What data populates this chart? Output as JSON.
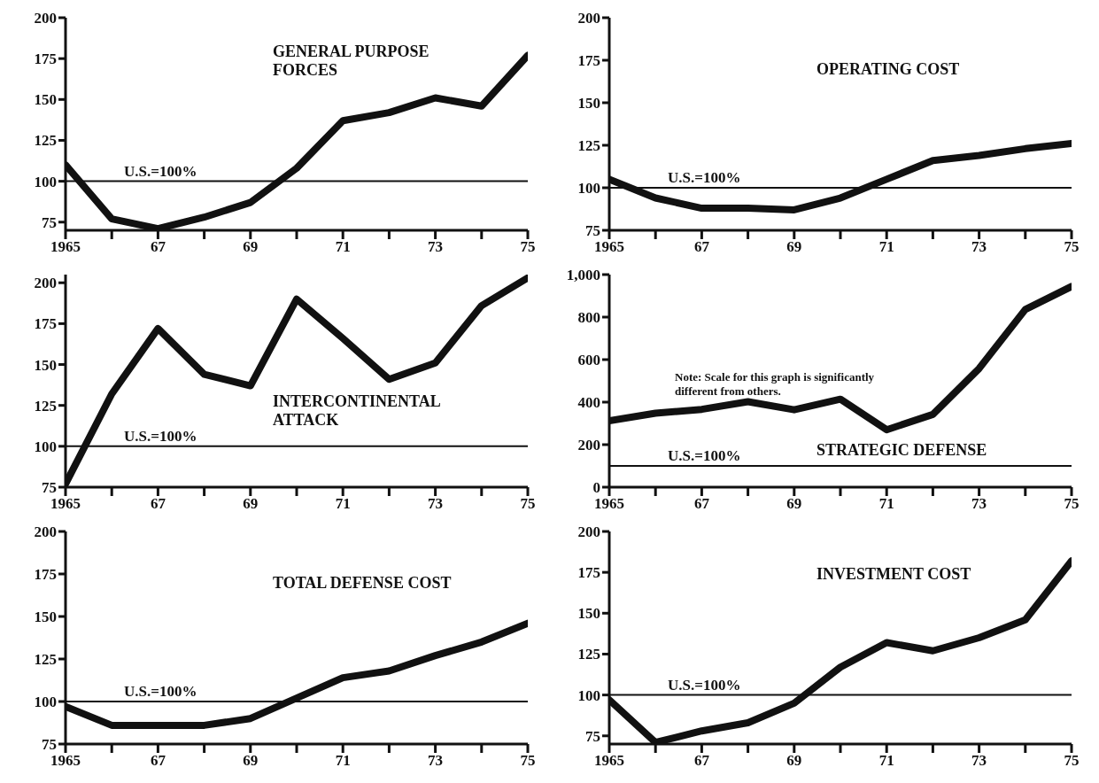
{
  "chart_data": [
    {
      "type": "line",
      "title": "GENERAL PURPOSE FORCES",
      "x": [
        1965,
        1966,
        1967,
        1968,
        1969,
        1970,
        1971,
        1972,
        1973,
        1974,
        1975
      ],
      "series": [
        {
          "color": "#111111",
          "values": [
            110,
            77,
            71,
            78,
            87,
            108,
            137,
            142,
            151,
            146,
            177
          ]
        }
      ],
      "xlim": [
        1965,
        1975
      ],
      "xticks": [
        {
          "value": 1965,
          "label": "1965"
        },
        {
          "value": 1966,
          "label": null
        },
        {
          "value": 1967,
          "label": "67"
        },
        {
          "value": 1968,
          "label": null
        },
        {
          "value": 1969,
          "label": "69"
        },
        {
          "value": 1970,
          "label": null
        },
        {
          "value": 1971,
          "label": "71"
        },
        {
          "value": 1972,
          "label": null
        },
        {
          "value": 1973,
          "label": "73"
        },
        {
          "value": 1974,
          "label": null
        },
        {
          "value": 1975,
          "label": "75"
        }
      ],
      "ylim": [
        70,
        200
      ],
      "yticks": [
        75,
        100,
        125,
        150,
        175,
        200
      ],
      "ref_lines": [
        {
          "axis": "y",
          "value": 100,
          "label": "U.S.=100%"
        }
      ],
      "grid": false,
      "legend": false,
      "marker": "none",
      "line_style": "solid"
    },
    {
      "type": "line",
      "title": "OPERATING COST",
      "x": [
        1965,
        1966,
        1967,
        1968,
        1969,
        1970,
        1971,
        1972,
        1973,
        1974,
        1975
      ],
      "series": [
        {
          "color": "#111111",
          "values": [
            105,
            94,
            88,
            88,
            87,
            94,
            105,
            116,
            119,
            123,
            126
          ]
        }
      ],
      "xlim": [
        1965,
        1975
      ],
      "xticks": [
        {
          "value": 1965,
          "label": "1965"
        },
        {
          "value": 1966,
          "label": null
        },
        {
          "value": 1967,
          "label": "67"
        },
        {
          "value": 1968,
          "label": null
        },
        {
          "value": 1969,
          "label": "69"
        },
        {
          "value": 1970,
          "label": null
        },
        {
          "value": 1971,
          "label": "71"
        },
        {
          "value": 1972,
          "label": null
        },
        {
          "value": 1973,
          "label": "73"
        },
        {
          "value": 1974,
          "label": null
        },
        {
          "value": 1975,
          "label": "75"
        }
      ],
      "ylim": [
        75,
        200
      ],
      "yticks": [
        75,
        100,
        125,
        150,
        175,
        200
      ],
      "ref_lines": [
        {
          "axis": "y",
          "value": 100,
          "label": "U.S.=100%"
        }
      ],
      "grid": false,
      "legend": false,
      "marker": "none",
      "line_style": "solid"
    },
    {
      "type": "line",
      "title": "INTERCONTINENTAL ATTACK",
      "x": [
        1965,
        1966,
        1967,
        1968,
        1969,
        1970,
        1971,
        1972,
        1973,
        1974,
        1975
      ],
      "series": [
        {
          "color": "#111111",
          "values": [
            77,
            132,
            172,
            144,
            137,
            190,
            166,
            141,
            151,
            186,
            203
          ]
        }
      ],
      "xlim": [
        1965,
        1975
      ],
      "xticks": [
        {
          "value": 1965,
          "label": "1965"
        },
        {
          "value": 1966,
          "label": null
        },
        {
          "value": 1967,
          "label": "67"
        },
        {
          "value": 1968,
          "label": null
        },
        {
          "value": 1969,
          "label": "69"
        },
        {
          "value": 1970,
          "label": null
        },
        {
          "value": 1971,
          "label": "71"
        },
        {
          "value": 1972,
          "label": null
        },
        {
          "value": 1973,
          "label": "73"
        },
        {
          "value": 1974,
          "label": null
        },
        {
          "value": 1975,
          "label": "75"
        }
      ],
      "ylim": [
        75,
        205
      ],
      "yticks": [
        75,
        100,
        125,
        150,
        175,
        200
      ],
      "ref_lines": [
        {
          "axis": "y",
          "value": 100,
          "label": "U.S.=100%"
        }
      ],
      "grid": false,
      "legend": false,
      "marker": "none",
      "line_style": "solid"
    },
    {
      "type": "line",
      "title": "STRATEGIC DEFENSE",
      "annotations": [
        "Note:  Scale for this graph is significantly different from others."
      ],
      "x": [
        1965,
        1966,
        1967,
        1968,
        1969,
        1970,
        1971,
        1972,
        1973,
        1974,
        1975
      ],
      "series": [
        {
          "color": "#111111",
          "values": [
            312,
            348,
            366,
            402,
            364,
            414,
            270,
            342,
            558,
            836,
            944
          ]
        }
      ],
      "xlim": [
        1965,
        1975
      ],
      "xticks": [
        {
          "value": 1965,
          "label": "1965"
        },
        {
          "value": 1966,
          "label": null
        },
        {
          "value": 1967,
          "label": "67"
        },
        {
          "value": 1968,
          "label": null
        },
        {
          "value": 1969,
          "label": "69"
        },
        {
          "value": 1970,
          "label": null
        },
        {
          "value": 1971,
          "label": "71"
        },
        {
          "value": 1972,
          "label": null
        },
        {
          "value": 1973,
          "label": "73"
        },
        {
          "value": 1974,
          "label": null
        },
        {
          "value": 1975,
          "label": "75"
        }
      ],
      "ylim": [
        0,
        1000
      ],
      "yticks": [
        0,
        200,
        400,
        600,
        800,
        {
          "value": 1000,
          "label": "1,000"
        }
      ],
      "ref_lines": [
        {
          "axis": "y",
          "value": 100,
          "label": "U.S.=100%"
        }
      ],
      "grid": false,
      "legend": false,
      "marker": "none",
      "line_style": "solid"
    },
    {
      "type": "line",
      "title": "TOTAL DEFENSE COST",
      "x": [
        1965,
        1966,
        1967,
        1968,
        1969,
        1970,
        1971,
        1972,
        1973,
        1974,
        1975
      ],
      "series": [
        {
          "color": "#111111",
          "values": [
            97,
            86,
            86,
            86,
            90,
            102,
            114,
            118,
            127,
            135,
            146
          ]
        }
      ],
      "xlim": [
        1965,
        1975
      ],
      "xticks": [
        {
          "value": 1965,
          "label": "1965"
        },
        {
          "value": 1966,
          "label": null
        },
        {
          "value": 1967,
          "label": "67"
        },
        {
          "value": 1968,
          "label": null
        },
        {
          "value": 1969,
          "label": "69"
        },
        {
          "value": 1970,
          "label": null
        },
        {
          "value": 1971,
          "label": "71"
        },
        {
          "value": 1972,
          "label": null
        },
        {
          "value": 1973,
          "label": "73"
        },
        {
          "value": 1974,
          "label": null
        },
        {
          "value": 1975,
          "label": "75"
        }
      ],
      "ylim": [
        75,
        200
      ],
      "yticks": [
        75,
        100,
        125,
        150,
        175,
        200
      ],
      "ref_lines": [
        {
          "axis": "y",
          "value": 100,
          "label": "U.S.=100%"
        }
      ],
      "grid": false,
      "legend": false,
      "marker": "none",
      "line_style": "solid"
    },
    {
      "type": "line",
      "title": "INVESTMENT COST",
      "x": [
        1965,
        1966,
        1967,
        1968,
        1969,
        1970,
        1971,
        1972,
        1973,
        1974,
        1975
      ],
      "series": [
        {
          "color": "#111111",
          "values": [
            97,
            71,
            78,
            83,
            95,
            117,
            132,
            127,
            135,
            146,
            182
          ]
        }
      ],
      "xlim": [
        1965,
        1975
      ],
      "xticks": [
        {
          "value": 1965,
          "label": "1965"
        },
        {
          "value": 1966,
          "label": null
        },
        {
          "value": 1967,
          "label": "67"
        },
        {
          "value": 1968,
          "label": null
        },
        {
          "value": 1969,
          "label": "69"
        },
        {
          "value": 1970,
          "label": null
        },
        {
          "value": 1971,
          "label": "71"
        },
        {
          "value": 1972,
          "label": null
        },
        {
          "value": 1973,
          "label": "73"
        },
        {
          "value": 1974,
          "label": null
        },
        {
          "value": 1975,
          "label": "75"
        }
      ],
      "ylim": [
        70,
        200
      ],
      "yticks": [
        75,
        100,
        125,
        150,
        175,
        200
      ],
      "ref_lines": [
        {
          "axis": "y",
          "value": 100,
          "label": "U.S.=100%"
        }
      ],
      "grid": false,
      "legend": false,
      "marker": "none",
      "line_style": "solid"
    }
  ]
}
